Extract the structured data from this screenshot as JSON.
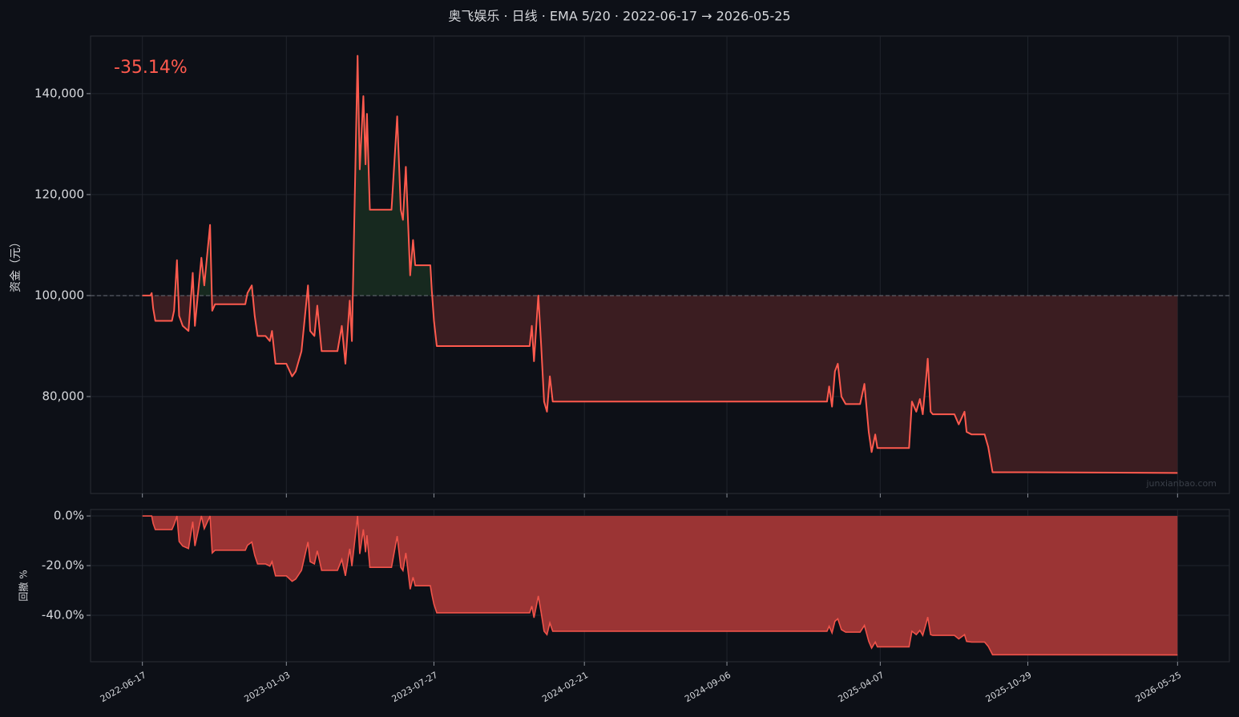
{
  "chart_data": [
    {
      "type": "line",
      "title": "奥飞娱乐 · 日线 · EMA 5/20 · 2022-06-17 → 2026-05-25",
      "ylabel": "资金（元）",
      "annotation": "-35.14%",
      "watermark": "junxianbao.com",
      "x": [
        "2022-06-17",
        "2022-06-28",
        "2022-06-30",
        "2022-07-02",
        "2022-07-05",
        "2022-07-28",
        "2022-07-31",
        "2022-08-04",
        "2022-08-07",
        "2022-08-12",
        "2022-08-20",
        "2022-08-26",
        "2022-08-29",
        "2022-09-07",
        "2022-09-11",
        "2022-09-19",
        "2022-09-22",
        "2022-09-26",
        "2022-11-07",
        "2022-11-10",
        "2022-11-16",
        "2022-11-20",
        "2022-11-24",
        "2022-12-05",
        "2022-12-11",
        "2022-12-14",
        "2022-12-19",
        "2023-01-03",
        "2023-01-11",
        "2023-01-16",
        "2023-01-24",
        "2023-02-02",
        "2023-02-05",
        "2023-02-11",
        "2023-02-15",
        "2023-02-21",
        "2023-03-15",
        "2023-03-21",
        "2023-03-26",
        "2023-04-01",
        "2023-04-04",
        "2023-04-12",
        "2023-04-15",
        "2023-04-20",
        "2023-04-23",
        "2023-04-25",
        "2023-04-29",
        "2023-05-29",
        "2023-06-06",
        "2023-06-11",
        "2023-06-14",
        "2023-06-18",
        "2023-06-24",
        "2023-06-28",
        "2023-07-01",
        "2023-07-22",
        "2023-07-24",
        "2023-07-27",
        "2023-07-31",
        "2023-12-07",
        "2023-12-10",
        "2023-12-13",
        "2023-12-19",
        "2023-12-23",
        "2023-12-27",
        "2023-12-31",
        "2024-01-04",
        "2024-01-08",
        "2024-02-21",
        "2024-09-06",
        "2025-01-23",
        "2025-01-26",
        "2025-01-30",
        "2025-02-03",
        "2025-02-07",
        "2025-02-12",
        "2025-02-18",
        "2025-03-10",
        "2025-03-16",
        "2025-03-22",
        "2025-03-26",
        "2025-03-31",
        "2025-04-03",
        "2025-04-07",
        "2025-05-17",
        "2025-05-21",
        "2025-05-27",
        "2025-06-01",
        "2025-06-05",
        "2025-06-10",
        "2025-06-12",
        "2025-06-16",
        "2025-06-19",
        "2025-07-19",
        "2025-07-25",
        "2025-08-02",
        "2025-08-05",
        "2025-08-12",
        "2025-08-30",
        "2025-09-04",
        "2025-09-10",
        "2025-10-29",
        "2026-05-25"
      ],
      "series": [
        {
          "color": "#ff5a4e",
          "values": [
            100000,
            100000,
            100500,
            97500,
            95000,
            95000,
            97000,
            107000,
            96000,
            94000,
            93000,
            104500,
            94000,
            107500,
            102000,
            114000,
            97000,
            98300,
            98300,
            100500,
            102000,
            96000,
            92000,
            92000,
            91000,
            93000,
            86500,
            86500,
            84000,
            85000,
            89000,
            102000,
            93000,
            92000,
            98000,
            89000,
            89000,
            94000,
            86500,
            99000,
            91000,
            147500,
            125000,
            139500,
            126000,
            136000,
            117000,
            117000,
            135500,
            117000,
            115000,
            125500,
            104000,
            111000,
            106000,
            106000,
            101000,
            95000,
            90000,
            90000,
            94000,
            87000,
            100000,
            90000,
            79000,
            77000,
            84000,
            79000,
            79000,
            79000,
            79000,
            82000,
            78000,
            85000,
            86500,
            80000,
            78500,
            78500,
            82500,
            73000,
            69000,
            72500,
            69800,
            69800,
            69800,
            79000,
            77000,
            79500,
            76500,
            84000,
            87500,
            77000,
            76500,
            76500,
            74500,
            77000,
            73000,
            72500,
            72500,
            70000,
            65000,
            65000,
            64860
          ]
        }
      ],
      "baseline": 100000,
      "above_color": "#17291f",
      "below_color": "#3b1d21",
      "xlim": [
        "2022-04-06",
        "2026-08-05"
      ],
      "xticks": [
        "2022-06-17",
        "2023-01-03",
        "2023-07-27",
        "2024-02-21",
        "2024-09-06",
        "2025-04-07",
        "2025-10-29",
        "2026-05-25"
      ],
      "ylim": [
        60800,
        151400
      ],
      "yticks": [
        {
          "value": 80000,
          "label": "80,000"
        },
        {
          "value": 100000,
          "label": "100,000"
        },
        {
          "value": 120000,
          "label": "120,000"
        },
        {
          "value": 140000,
          "label": "140,000"
        }
      ],
      "grid": true
    },
    {
      "type": "area",
      "ylabel": "回撤 %",
      "x": [
        "2022-06-17",
        "2022-06-28",
        "2022-06-30",
        "2022-07-02",
        "2022-07-05",
        "2022-07-28",
        "2022-07-31",
        "2022-08-04",
        "2022-08-07",
        "2022-08-12",
        "2022-08-20",
        "2022-08-26",
        "2022-08-29",
        "2022-09-07",
        "2022-09-11",
        "2022-09-19",
        "2022-09-22",
        "2022-09-26",
        "2022-11-07",
        "2022-11-10",
        "2022-11-16",
        "2022-11-20",
        "2022-11-24",
        "2022-12-05",
        "2022-12-11",
        "2022-12-14",
        "2022-12-19",
        "2023-01-03",
        "2023-01-11",
        "2023-01-16",
        "2023-01-24",
        "2023-02-02",
        "2023-02-05",
        "2023-02-11",
        "2023-02-15",
        "2023-02-21",
        "2023-03-15",
        "2023-03-21",
        "2023-03-26",
        "2023-04-01",
        "2023-04-04",
        "2023-04-12",
        "2023-04-15",
        "2023-04-20",
        "2023-04-23",
        "2023-04-25",
        "2023-04-29",
        "2023-05-29",
        "2023-06-06",
        "2023-06-11",
        "2023-06-14",
        "2023-06-18",
        "2023-06-24",
        "2023-06-28",
        "2023-07-01",
        "2023-07-22",
        "2023-07-24",
        "2023-07-27",
        "2023-07-31",
        "2023-12-07",
        "2023-12-10",
        "2023-12-13",
        "2023-12-19",
        "2023-12-23",
        "2023-12-27",
        "2023-12-31",
        "2024-01-04",
        "2024-01-08",
        "2024-02-21",
        "2024-09-06",
        "2025-01-23",
        "2025-01-26",
        "2025-01-30",
        "2025-02-03",
        "2025-02-07",
        "2025-02-12",
        "2025-02-18",
        "2025-03-10",
        "2025-03-16",
        "2025-03-22",
        "2025-03-26",
        "2025-03-31",
        "2025-04-03",
        "2025-04-07",
        "2025-05-17",
        "2025-05-21",
        "2025-05-27",
        "2025-06-01",
        "2025-06-05",
        "2025-06-10",
        "2025-06-12",
        "2025-06-16",
        "2025-06-19",
        "2025-07-19",
        "2025-07-25",
        "2025-08-02",
        "2025-08-05",
        "2025-08-12",
        "2025-08-30",
        "2025-09-04",
        "2025-09-10",
        "2025-10-29",
        "2026-05-25"
      ],
      "series": [
        {
          "color": "#f0534a",
          "fill": "#9b3434",
          "values": [
            0,
            0,
            0,
            -3.0,
            -5.5,
            -5.5,
            -3.5,
            0,
            -10.3,
            -12.1,
            -13.1,
            -2.3,
            -12.1,
            0,
            -5.1,
            0,
            -14.9,
            -13.8,
            -13.8,
            -11.8,
            -10.5,
            -15.8,
            -19.3,
            -19.3,
            -20.2,
            -18.4,
            -24.1,
            -24.1,
            -26.3,
            -25.4,
            -21.9,
            -10.5,
            -18.4,
            -19.3,
            -14.0,
            -21.9,
            -21.9,
            -17.5,
            -24.1,
            -13.2,
            -20.2,
            0,
            -15.3,
            -5.4,
            -14.6,
            -7.8,
            -20.7,
            -20.7,
            -8.1,
            -20.7,
            -22.0,
            -14.9,
            -29.5,
            -24.7,
            -28.1,
            -28.1,
            -31.5,
            -35.6,
            -39.0,
            -39.0,
            -36.3,
            -41.0,
            -32.2,
            -39.0,
            -46.4,
            -47.8,
            -43.1,
            -46.4,
            -46.4,
            -46.4,
            -46.4,
            -44.4,
            -47.1,
            -42.4,
            -41.4,
            -45.8,
            -46.8,
            -46.8,
            -44.1,
            -50.5,
            -53.2,
            -50.8,
            -52.7,
            -52.7,
            -52.7,
            -46.4,
            -47.8,
            -46.1,
            -48.1,
            -43.1,
            -40.7,
            -47.8,
            -48.1,
            -48.1,
            -49.5,
            -47.8,
            -50.5,
            -50.8,
            -50.8,
            -52.5,
            -55.9,
            -55.9,
            -56.0
          ]
        }
      ],
      "xlim": [
        "2022-04-06",
        "2026-08-05"
      ],
      "xticks": [
        "2022-06-17",
        "2023-01-03",
        "2023-07-27",
        "2024-02-21",
        "2024-09-06",
        "2025-04-07",
        "2025-10-29",
        "2026-05-25"
      ],
      "ylim": [
        -58.7,
        2.6
      ],
      "yticks": [
        {
          "value": 0,
          "label": "0.0%"
        },
        {
          "value": -20,
          "label": "-20.0%"
        },
        {
          "value": -40,
          "label": "-40.0%"
        }
      ],
      "grid": true
    }
  ]
}
